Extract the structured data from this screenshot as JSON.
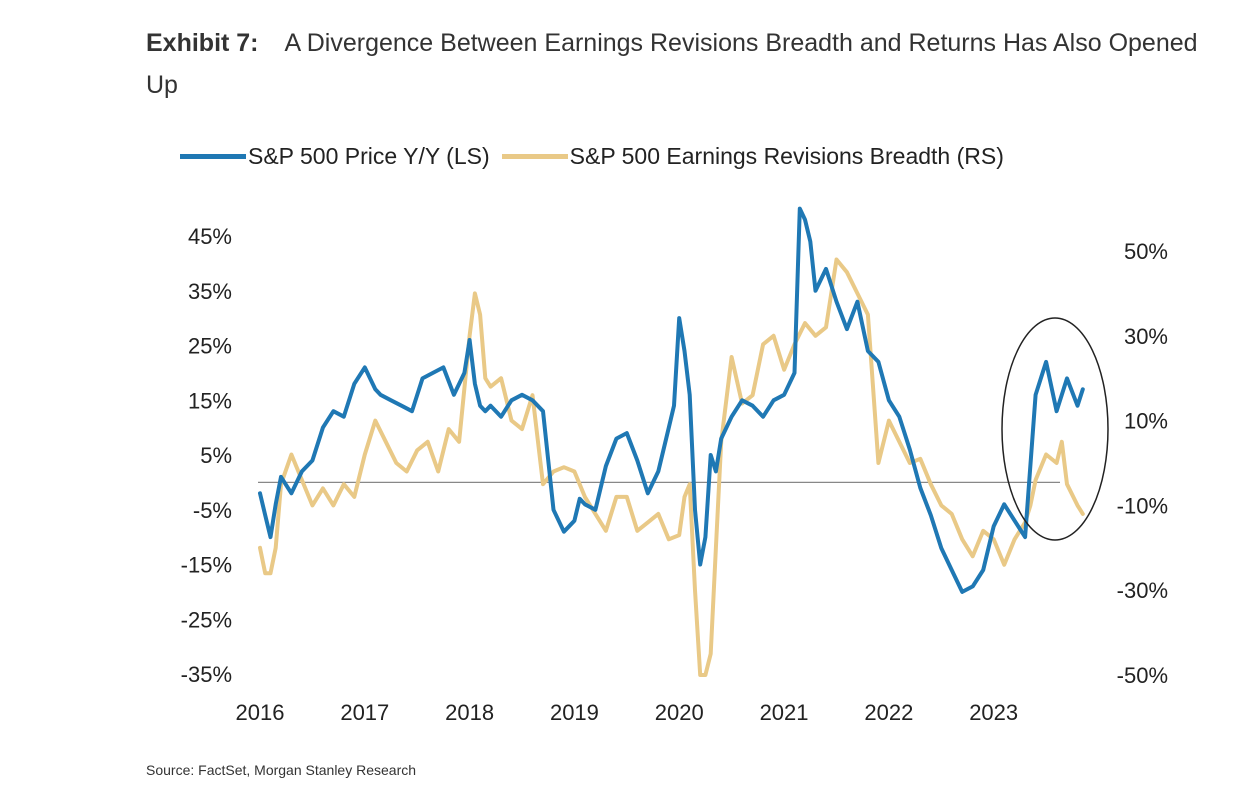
{
  "title": {
    "exhibit": "Exhibit 7:",
    "text": "A Divergence Between Earnings Revisions Breadth and Returns Has Also Opened Up"
  },
  "source": "Source: FactSet, Morgan Stanley Research",
  "chart_data": {
    "type": "line",
    "legend_position": "top",
    "grid": false,
    "x_ticks": [
      "2016",
      "2017",
      "2018",
      "2019",
      "2020",
      "2021",
      "2022",
      "2023"
    ],
    "xlim": [
      2016.0,
      2023.9
    ],
    "y_left": {
      "ticks": [
        "45%",
        "35%",
        "25%",
        "15%",
        "5%",
        "-5%",
        "-15%",
        "-25%",
        "-35%"
      ],
      "tick_values": [
        45,
        35,
        25,
        15,
        5,
        -5,
        -15,
        -25,
        -35
      ],
      "ylim": [
        -35,
        45
      ]
    },
    "y_right": {
      "ticks": [
        "50%",
        "30%",
        "10%",
        "-10%",
        "-30%",
        "-50%"
      ],
      "tick_values": [
        50,
        30,
        10,
        -10,
        -30,
        -50
      ],
      "ylim": [
        -50,
        50
      ]
    },
    "reference_line": {
      "axis": "left",
      "value": 0,
      "color": "#888888"
    },
    "annotation": {
      "shape": "ellipse",
      "note": "highlights 2023 divergence"
    },
    "series": [
      {
        "name": "S&P 500 Price Y/Y (LS)",
        "axis": "left",
        "color": "#1f78b4",
        "x": [
          2016.0,
          2016.05,
          2016.1,
          2016.15,
          2016.2,
          2016.3,
          2016.4,
          2016.5,
          2016.6,
          2016.7,
          2016.8,
          2016.9,
          2017.0,
          2017.1,
          2017.15,
          2017.25,
          2017.35,
          2017.45,
          2017.55,
          2017.65,
          2017.75,
          2017.85,
          2017.95,
          2018.0,
          2018.05,
          2018.1,
          2018.15,
          2018.2,
          2018.3,
          2018.4,
          2018.5,
          2018.6,
          2018.7,
          2018.8,
          2018.9,
          2018.95,
          2019.0,
          2019.05,
          2019.1,
          2019.2,
          2019.3,
          2019.4,
          2019.5,
          2019.6,
          2019.7,
          2019.8,
          2019.9,
          2019.95,
          2020.0,
          2020.05,
          2020.1,
          2020.15,
          2020.2,
          2020.25,
          2020.3,
          2020.35,
          2020.4,
          2020.5,
          2020.6,
          2020.7,
          2020.8,
          2020.9,
          2021.0,
          2021.1,
          2021.15,
          2021.2,
          2021.25,
          2021.3,
          2021.4,
          2021.5,
          2021.6,
          2021.7,
          2021.8,
          2021.9,
          2022.0,
          2022.1,
          2022.2,
          2022.3,
          2022.4,
          2022.5,
          2022.6,
          2022.7,
          2022.8,
          2022.9,
          2023.0,
          2023.1,
          2023.2,
          2023.3,
          2023.4,
          2023.5,
          2023.6,
          2023.7,
          2023.8,
          2023.85
        ],
        "values": [
          -2,
          -6,
          -10,
          -4,
          1,
          -2,
          2,
          4,
          10,
          13,
          12,
          18,
          21,
          17,
          16,
          15,
          14,
          13,
          19,
          20,
          21,
          16,
          20,
          26,
          18,
          14,
          13,
          14,
          12,
          15,
          16,
          15,
          13,
          -5,
          -9,
          -8,
          -7,
          -3,
          -4,
          -5,
          3,
          8,
          9,
          4,
          -2,
          2,
          10,
          14,
          30,
          24,
          16,
          -5,
          -15,
          -10,
          5,
          2,
          8,
          12,
          15,
          14,
          12,
          15,
          16,
          20,
          50,
          48,
          44,
          35,
          39,
          33,
          28,
          33,
          24,
          22,
          15,
          12,
          6,
          -1,
          -6,
          -12,
          -16,
          -20,
          -19,
          -16,
          -8,
          -4,
          -7,
          -10,
          16,
          22,
          13,
          19,
          14,
          17
        ]
      },
      {
        "name": "S&P 500 Earnings Revisions Breadth (RS)",
        "axis": "right",
        "color": "#e9c987",
        "x": [
          2016.0,
          2016.05,
          2016.1,
          2016.15,
          2016.2,
          2016.3,
          2016.4,
          2016.5,
          2016.6,
          2016.7,
          2016.8,
          2016.9,
          2017.0,
          2017.1,
          2017.2,
          2017.3,
          2017.4,
          2017.5,
          2017.6,
          2017.7,
          2017.8,
          2017.9,
          2018.0,
          2018.05,
          2018.1,
          2018.15,
          2018.2,
          2018.3,
          2018.4,
          2018.5,
          2018.6,
          2018.7,
          2018.8,
          2018.9,
          2019.0,
          2019.1,
          2019.2,
          2019.3,
          2019.4,
          2019.5,
          2019.6,
          2019.7,
          2019.8,
          2019.9,
          2020.0,
          2020.05,
          2020.1,
          2020.15,
          2020.2,
          2020.25,
          2020.3,
          2020.35,
          2020.4,
          2020.5,
          2020.6,
          2020.7,
          2020.8,
          2020.9,
          2021.0,
          2021.1,
          2021.2,
          2021.3,
          2021.4,
          2021.5,
          2021.6,
          2021.7,
          2021.8,
          2021.9,
          2022.0,
          2022.1,
          2022.2,
          2022.3,
          2022.4,
          2022.5,
          2022.6,
          2022.7,
          2022.8,
          2022.9,
          2023.0,
          2023.1,
          2023.2,
          2023.3,
          2023.35,
          2023.4,
          2023.5,
          2023.6,
          2023.65,
          2023.7,
          2023.8,
          2023.85
        ],
        "values": [
          -20,
          -26,
          -26,
          -20,
          -5,
          2,
          -4,
          -10,
          -6,
          -10,
          -5,
          -8,
          2,
          10,
          5,
          0,
          -2,
          3,
          5,
          -2,
          8,
          5,
          30,
          40,
          35,
          20,
          18,
          20,
          10,
          8,
          16,
          -5,
          -2,
          -1,
          -2,
          -8,
          -12,
          -16,
          -8,
          -8,
          -16,
          -14,
          -12,
          -18,
          -17,
          -8,
          -5,
          -30,
          -50,
          -50,
          -45,
          -20,
          5,
          25,
          14,
          16,
          28,
          30,
          22,
          28,
          33,
          30,
          32,
          48,
          45,
          40,
          35,
          0,
          10,
          5,
          0,
          1,
          -5,
          -10,
          -12,
          -18,
          -22,
          -16,
          -18,
          -24,
          -18,
          -14,
          -10,
          -4,
          2,
          0,
          5,
          -5,
          -10,
          -12
        ]
      }
    ]
  }
}
